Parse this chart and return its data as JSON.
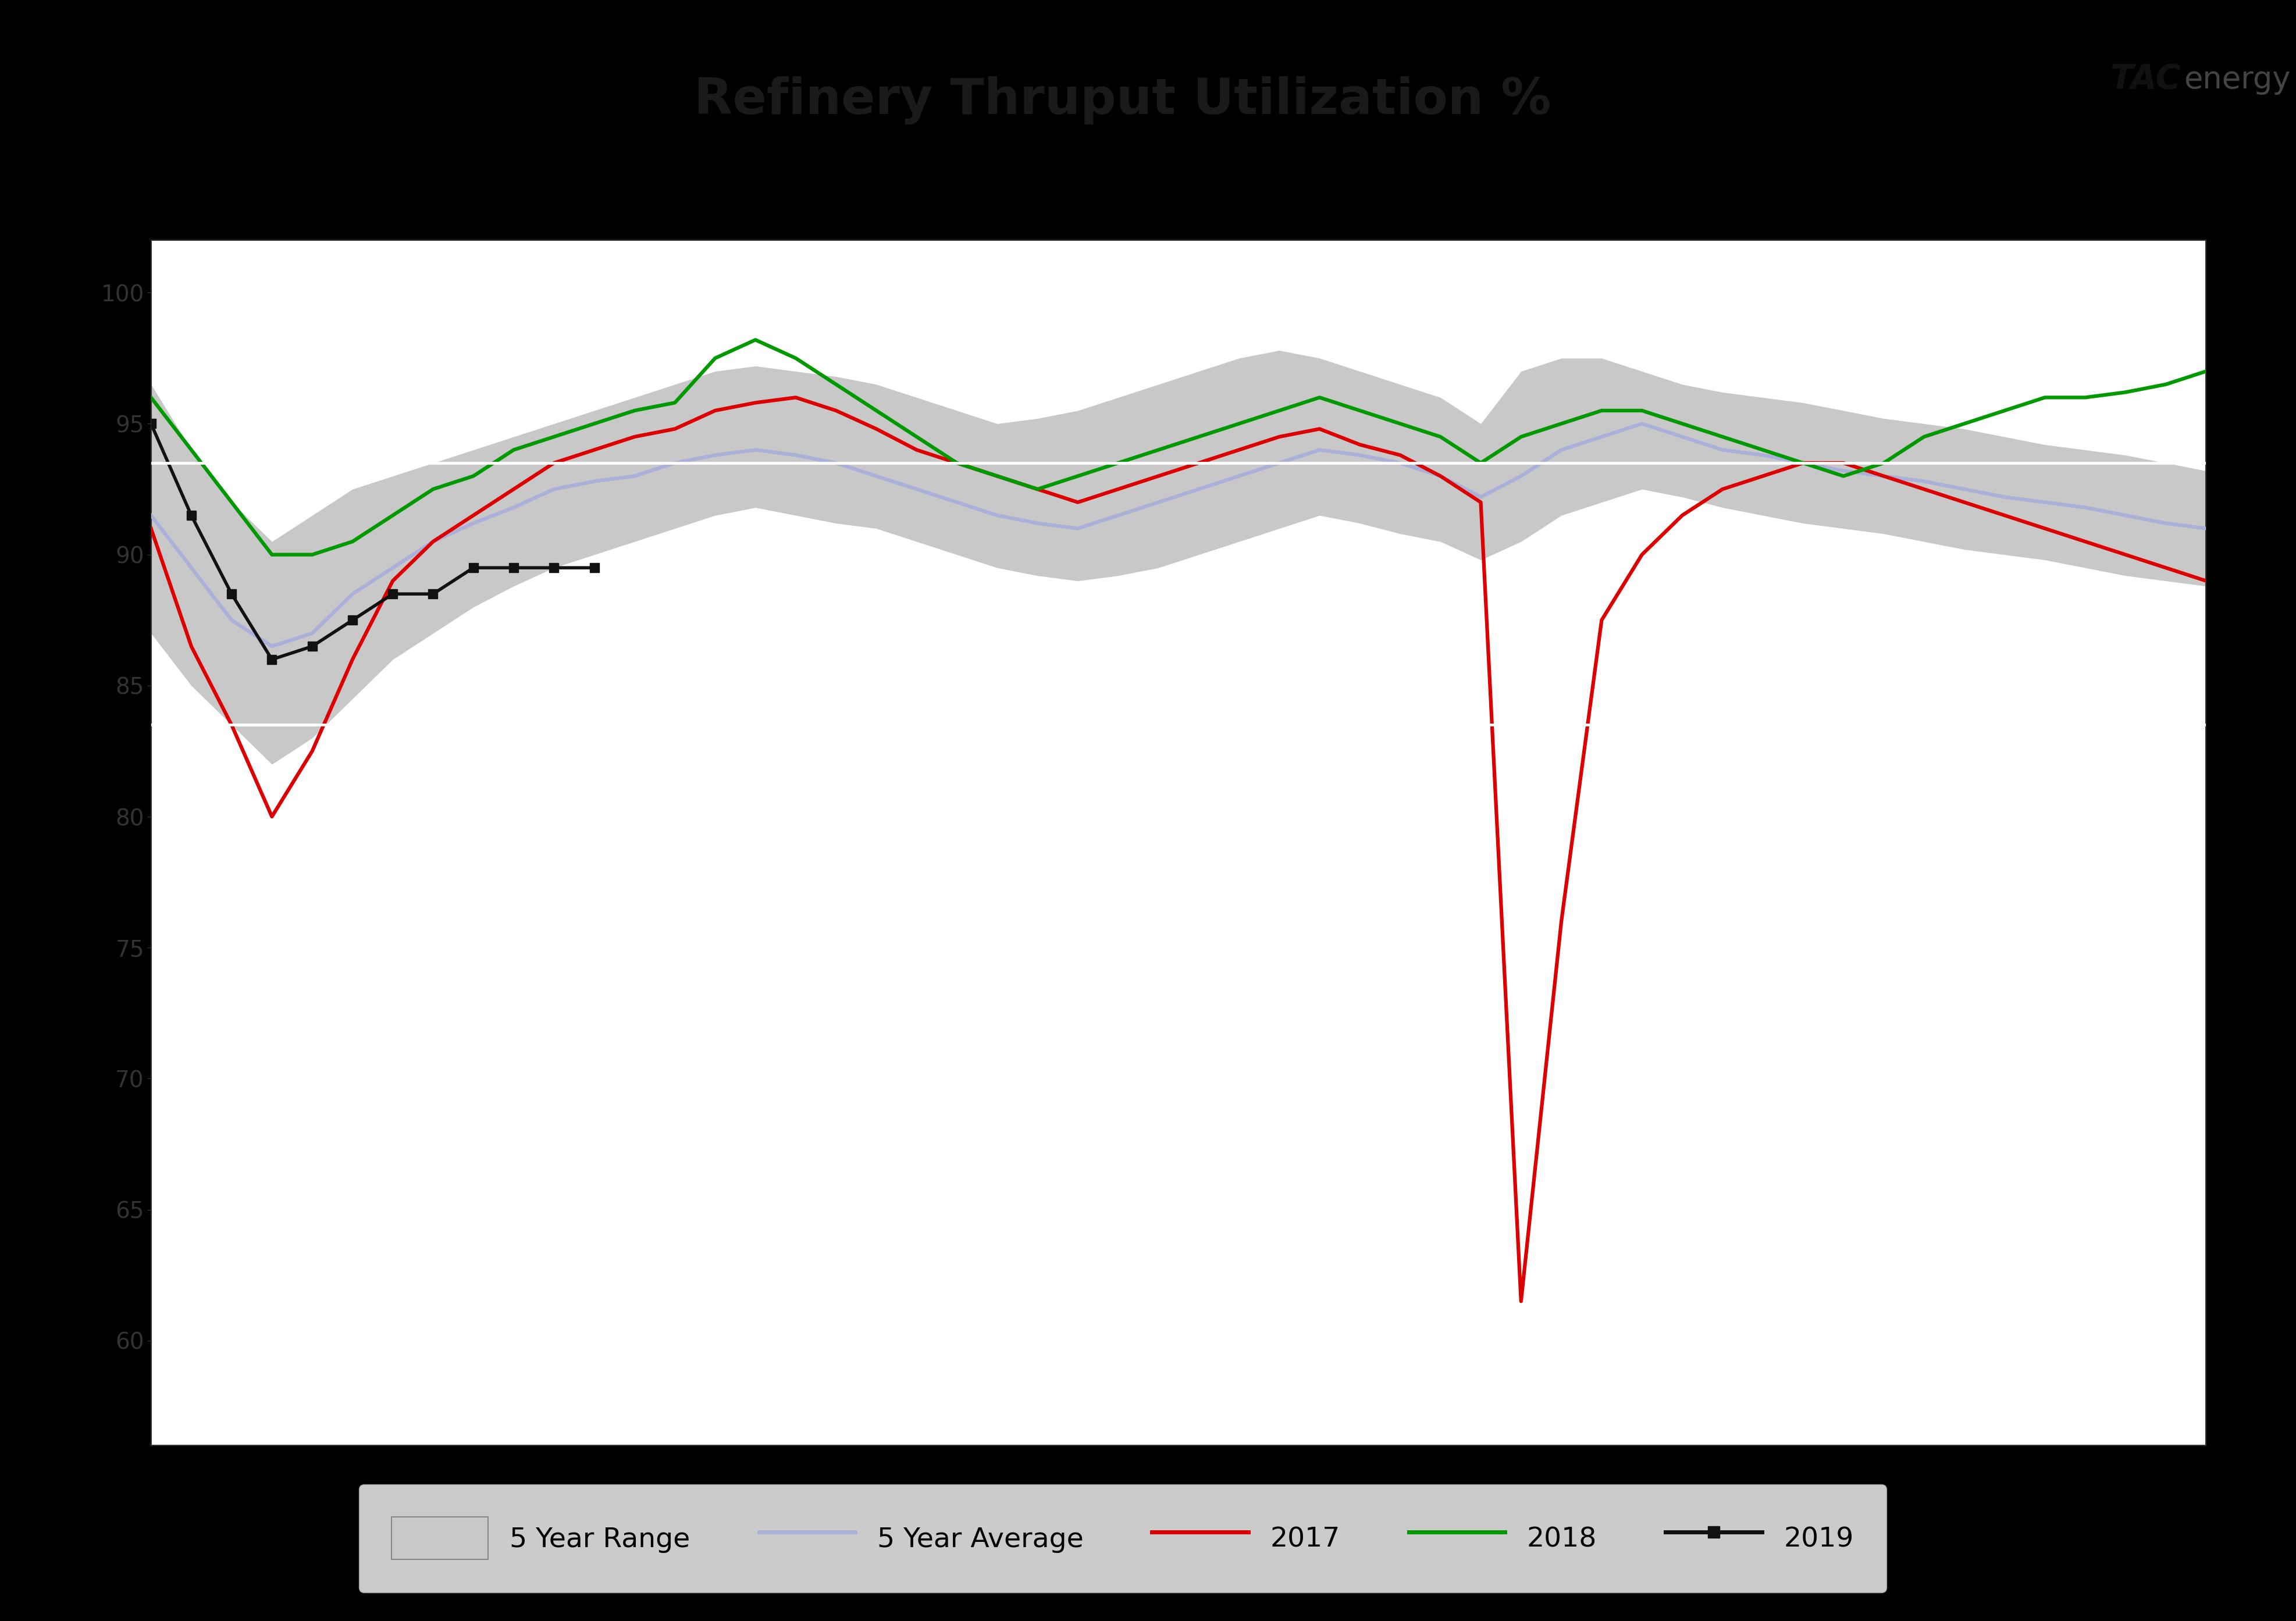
{
  "title": "Refinery Thruput Utilization %",
  "header_bg_color": "#aeaeae",
  "blue_bar_color": "#1055a0",
  "chart_bg_color": "#000000",
  "plot_area_bg_color": "#ffffff",
  "range_fill_color": "#c8c8c8",
  "avg_color": "#aab0d8",
  "y2017_color": "#dd0000",
  "y2018_color": "#009900",
  "y2019_color": "#111111",
  "ylim": [
    56,
    102
  ],
  "ytick_values": [
    60,
    65,
    70,
    75,
    80,
    85,
    90,
    95,
    100
  ],
  "white_hlines": [
    93.5,
    83.5
  ],
  "range_upper": [
    96.5,
    94.0,
    92.0,
    90.5,
    91.5,
    92.5,
    93.0,
    93.5,
    94.0,
    94.5,
    95.0,
    95.5,
    96.0,
    96.5,
    97.0,
    97.2,
    97.0,
    96.8,
    96.5,
    96.0,
    95.5,
    95.0,
    95.2,
    95.5,
    96.0,
    96.5,
    97.0,
    97.5,
    97.8,
    97.5,
    97.0,
    96.5,
    96.0,
    95.0,
    97.0,
    97.5,
    97.5,
    97.0,
    96.5,
    96.2,
    96.0,
    95.8,
    95.5,
    95.2,
    95.0,
    94.8,
    94.5,
    94.2,
    94.0,
    93.8,
    93.5,
    93.2
  ],
  "range_lower": [
    87.0,
    85.0,
    83.5,
    82.0,
    83.0,
    84.5,
    86.0,
    87.0,
    88.0,
    88.8,
    89.5,
    90.0,
    90.5,
    91.0,
    91.5,
    91.8,
    91.5,
    91.2,
    91.0,
    90.5,
    90.0,
    89.5,
    89.2,
    89.0,
    89.2,
    89.5,
    90.0,
    90.5,
    91.0,
    91.5,
    91.2,
    90.8,
    90.5,
    89.8,
    90.5,
    91.5,
    92.0,
    92.5,
    92.2,
    91.8,
    91.5,
    91.2,
    91.0,
    90.8,
    90.5,
    90.2,
    90.0,
    89.8,
    89.5,
    89.2,
    89.0,
    88.8
  ],
  "avg": [
    91.5,
    89.5,
    87.5,
    86.5,
    87.0,
    88.5,
    89.5,
    90.5,
    91.2,
    91.8,
    92.5,
    92.8,
    93.0,
    93.5,
    93.8,
    94.0,
    93.8,
    93.5,
    93.0,
    92.5,
    92.0,
    91.5,
    91.2,
    91.0,
    91.5,
    92.0,
    92.5,
    93.0,
    93.5,
    94.0,
    93.8,
    93.5,
    93.0,
    92.2,
    93.0,
    94.0,
    94.5,
    95.0,
    94.5,
    94.0,
    93.8,
    93.5,
    93.2,
    93.0,
    92.8,
    92.5,
    92.2,
    92.0,
    91.8,
    91.5,
    91.2,
    91.0
  ],
  "y2017": [
    91.0,
    86.5,
    83.5,
    80.0,
    82.5,
    86.0,
    89.0,
    90.5,
    91.5,
    92.5,
    93.5,
    94.0,
    94.5,
    94.8,
    95.5,
    95.8,
    96.0,
    95.5,
    94.8,
    94.0,
    93.5,
    93.0,
    92.5,
    92.0,
    92.5,
    93.0,
    93.5,
    94.0,
    94.5,
    94.8,
    94.2,
    93.8,
    93.0,
    92.0,
    61.5,
    76.0,
    87.5,
    90.0,
    91.5,
    92.5,
    93.0,
    93.5,
    93.5,
    93.0,
    92.5,
    92.0,
    91.5,
    91.0,
    90.5,
    90.0,
    89.5,
    89.0
  ],
  "y2018": [
    96.0,
    94.0,
    92.0,
    90.0,
    90.0,
    90.5,
    91.5,
    92.5,
    93.0,
    94.0,
    94.5,
    95.0,
    95.5,
    95.8,
    97.5,
    98.2,
    97.5,
    96.5,
    95.5,
    94.5,
    93.5,
    93.0,
    92.5,
    93.0,
    93.5,
    94.0,
    94.5,
    95.0,
    95.5,
    96.0,
    95.5,
    95.0,
    94.5,
    93.5,
    94.5,
    95.0,
    95.5,
    95.5,
    95.0,
    94.5,
    94.0,
    93.5,
    93.0,
    93.5,
    94.5,
    95.0,
    95.5,
    96.0,
    96.0,
    96.2,
    96.5,
    97.0
  ],
  "y2019": [
    95.0,
    91.5,
    88.5,
    86.0,
    86.5,
    87.5,
    88.5,
    88.5,
    89.5,
    89.5,
    89.5,
    89.5,
    null,
    null,
    null,
    null,
    null,
    null,
    null,
    null,
    null,
    null,
    null,
    null,
    null,
    null,
    null,
    null,
    null,
    null,
    null,
    null,
    null,
    null,
    null,
    null,
    null,
    null,
    null,
    null,
    null,
    null,
    null,
    null,
    null,
    null,
    null,
    null,
    null,
    null,
    null,
    null
  ],
  "legend_items": [
    "5 Year Range",
    "5 Year Average",
    "2017",
    "2018",
    "2019"
  ],
  "tac_color_tac": "#222222",
  "tac_color_energy": "#222222"
}
